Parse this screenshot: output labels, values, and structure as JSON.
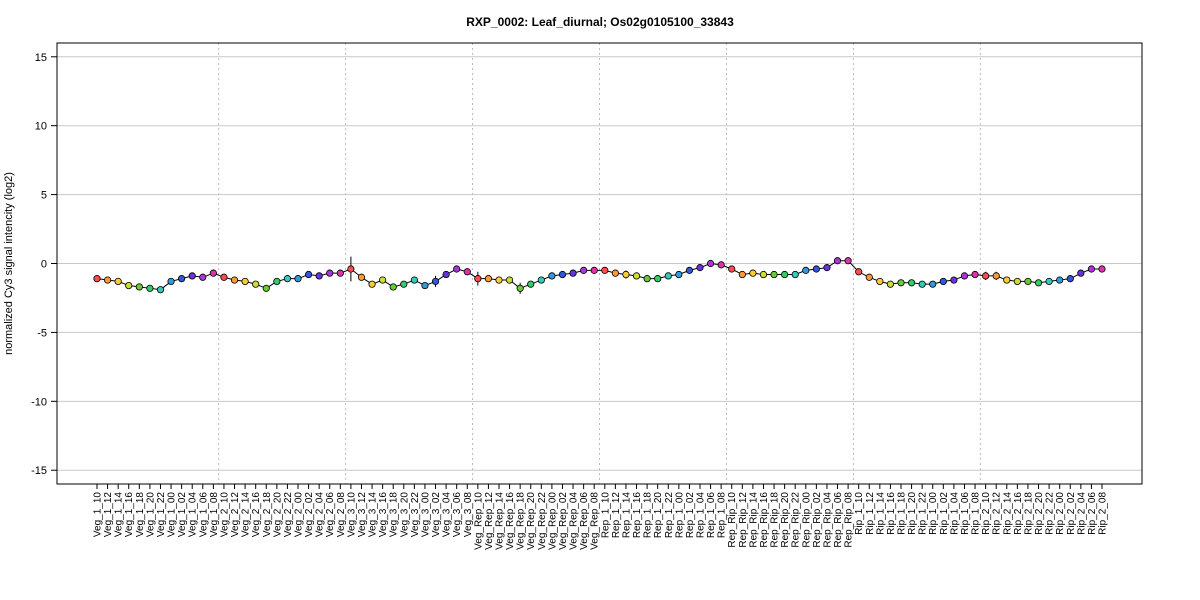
{
  "chart_data": {
    "type": "line",
    "title": "RXP_0002: Leaf_diurnal; Os02g0105100_33843",
    "xlabel": "",
    "ylabel": "normalized Cy3 signal intencity (log2)",
    "ylim": [
      -16,
      16
    ],
    "yticks": [
      -15,
      -10,
      -5,
      0,
      5,
      10,
      15
    ],
    "grid": true,
    "group_separators_after": [
      11,
      23,
      35,
      47,
      59,
      71,
      83
    ],
    "categories": [
      "Veg_1_10",
      "Veg_1_12",
      "Veg_1_14",
      "Veg_1_16",
      "Veg_1_18",
      "Veg_1_20",
      "Veg_1_22",
      "Veg_1_00",
      "Veg_1_02",
      "Veg_1_04",
      "Veg_1_06",
      "Veg_1_08",
      "Veg_2_10",
      "Veg_2_12",
      "Veg_2_14",
      "Veg_2_16",
      "Veg_2_18",
      "Veg_2_20",
      "Veg_2_22",
      "Veg_2_00",
      "Veg_2_02",
      "Veg_2_04",
      "Veg_2_06",
      "Veg_2_08",
      "Veg_3_10",
      "Veg_3_12",
      "Veg_3_14",
      "Veg_3_16",
      "Veg_3_18",
      "Veg_3_20",
      "Veg_3_22",
      "Veg_3_00",
      "Veg_3_02",
      "Veg_3_04",
      "Veg_3_06",
      "Veg_3_08",
      "Veg_Rep_10",
      "Veg_Rep_12",
      "Veg_Rep_14",
      "Veg_Rep_16",
      "Veg_Rep_18",
      "Veg_Rep_20",
      "Veg_Rep_22",
      "Veg_Rep_00",
      "Veg_Rep_02",
      "Veg_Rep_04",
      "Veg_Rep_06",
      "Veg_Rep_08",
      "Rep_1_10",
      "Rep_1_12",
      "Rep_1_14",
      "Rep_1_16",
      "Rep_1_18",
      "Rep_1_20",
      "Rep_1_22",
      "Rep_1_00",
      "Rep_1_02",
      "Rep_1_04",
      "Rep_1_06",
      "Rep_1_08",
      "Rep_Rip_10",
      "Rep_Rip_12",
      "Rep_Rip_14",
      "Rep_Rip_16",
      "Rep_Rip_18",
      "Rep_Rip_20",
      "Rep_Rip_22",
      "Rep_Rip_00",
      "Rep_Rip_02",
      "Rep_Rip_04",
      "Rep_Rip_06",
      "Rep_Rip_08",
      "Rip_1_10",
      "Rip_1_12",
      "Rip_1_14",
      "Rip_1_16",
      "Rip_1_18",
      "Rip_1_20",
      "Rip_1_22",
      "Rip_1_00",
      "Rip_1_02",
      "Rip_1_04",
      "Rip_1_06",
      "Rip_1_08",
      "Rip_2_10",
      "Rip_2_12",
      "Rip_2_14",
      "Rip_2_16",
      "Rip_2_18",
      "Rip_2_20",
      "Rip_2_22",
      "Rip_2_00",
      "Rip_2_02",
      "Rip_2_04",
      "Rip_2_06",
      "Rip_2_08"
    ],
    "values": [
      -1.1,
      -1.2,
      -1.3,
      -1.6,
      -1.7,
      -1.8,
      -1.9,
      -1.3,
      -1.1,
      -0.9,
      -1.0,
      -0.7,
      -1.0,
      -1.2,
      -1.3,
      -1.5,
      -1.8,
      -1.3,
      -1.1,
      -1.1,
      -0.8,
      -0.9,
      -0.7,
      -0.7,
      -0.4,
      -1.0,
      -1.5,
      -1.2,
      -1.7,
      -1.5,
      -1.2,
      -1.6,
      -1.3,
      -0.8,
      -0.4,
      -0.6,
      -1.1,
      -1.1,
      -1.2,
      -1.2,
      -1.8,
      -1.5,
      -1.2,
      -0.9,
      -0.8,
      -0.7,
      -0.5,
      -0.5,
      -0.5,
      -0.7,
      -0.8,
      -0.9,
      -1.1,
      -1.1,
      -0.9,
      -0.8,
      -0.5,
      -0.3,
      -0.0,
      -0.1,
      -0.4,
      -0.8,
      -0.7,
      -0.8,
      -0.8,
      -0.8,
      -0.8,
      -0.5,
      -0.4,
      -0.3,
      0.2,
      0.2,
      -0.6,
      -1.0,
      -1.3,
      -1.5,
      -1.4,
      -1.4,
      -1.5,
      -1.5,
      -1.3,
      -1.2,
      -0.9,
      -0.8,
      -0.9,
      -0.9,
      -1.2,
      -1.3,
      -1.3,
      -1.4,
      -1.3,
      -1.2,
      -1.1,
      -0.7,
      -0.4,
      -0.4
    ],
    "errors": [
      0.1,
      0.1,
      0.1,
      0.2,
      0.2,
      0.1,
      0.2,
      0.1,
      0.1,
      0.1,
      0.1,
      0.1,
      0.1,
      0.1,
      0.1,
      0.1,
      0.1,
      0.1,
      0.1,
      0.1,
      0.2,
      0.1,
      0.1,
      0.1,
      0.9,
      0.1,
      0.1,
      0.1,
      0.2,
      0.2,
      0.1,
      0.1,
      0.4,
      0.1,
      0.1,
      0.1,
      0.5,
      0.1,
      0.1,
      0.1,
      0.4,
      0.1,
      0.2,
      0.2,
      0.1,
      0.1,
      0.1,
      0.1,
      0.1,
      0.1,
      0.3,
      0.1,
      0.1,
      0.1,
      0.1,
      0.1,
      0.1,
      0.1,
      0.1,
      0.1,
      0.1,
      0.1,
      0.1,
      0.1,
      0.1,
      0.1,
      0.1,
      0.1,
      0.1,
      0.1,
      0.1,
      0.1,
      0.1,
      0.1,
      0.1,
      0.1,
      0.1,
      0.1,
      0.1,
      0.1,
      0.1,
      0.1,
      0.1,
      0.1,
      0.3,
      0.3,
      0.1,
      0.1,
      0.1,
      0.1,
      0.1,
      0.1,
      0.1,
      0.1,
      0.1,
      0.1
    ],
    "point_colors": [
      "#ff4d4d",
      "#ff9933",
      "#ffcc33",
      "#ccdd33",
      "#66cc33",
      "#33cc66",
      "#33ccbb",
      "#3399dd",
      "#3355dd",
      "#6633dd",
      "#aa33dd",
      "#dd33aa",
      "#ff4d4d",
      "#ff9933",
      "#ffcc33",
      "#ccdd33",
      "#66cc33",
      "#33cc66",
      "#33ccbb",
      "#3399dd",
      "#3355dd",
      "#6633dd",
      "#aa33dd",
      "#dd33aa",
      "#ff4d4d",
      "#ff9933",
      "#ffcc33",
      "#ccdd33",
      "#66cc33",
      "#33cc66",
      "#33ccbb",
      "#3399dd",
      "#3355dd",
      "#6633dd",
      "#aa33dd",
      "#dd33aa",
      "#ff4d4d",
      "#ff9933",
      "#ffcc33",
      "#ccdd33",
      "#66cc33",
      "#33cc66",
      "#33ccbb",
      "#3399dd",
      "#3355dd",
      "#6633dd",
      "#aa33dd",
      "#dd33aa",
      "#ff4d4d",
      "#ff9933",
      "#ffcc33",
      "#ccdd33",
      "#66cc33",
      "#33cc66",
      "#33ccbb",
      "#3399dd",
      "#3355dd",
      "#6633dd",
      "#aa33dd",
      "#dd33aa",
      "#ff4d4d",
      "#ff9933",
      "#ffcc33",
      "#ccdd33",
      "#66cc33",
      "#33cc66",
      "#33ccbb",
      "#3399dd",
      "#3355dd",
      "#6633dd",
      "#aa33dd",
      "#dd33aa",
      "#ff4d4d",
      "#ff9933",
      "#ffcc33",
      "#ccdd33",
      "#66cc33",
      "#33cc66",
      "#33ccbb",
      "#3399dd",
      "#3355dd",
      "#6633dd",
      "#aa33dd",
      "#dd33aa",
      "#ff4d4d",
      "#ff9933",
      "#ffcc33",
      "#ccdd33",
      "#66cc33",
      "#33cc66",
      "#33ccbb",
      "#3399dd",
      "#3355dd",
      "#6633dd",
      "#aa33dd",
      "#dd33aa"
    ]
  },
  "colors": {
    "line": "#000000",
    "grid": "#c8c8c8",
    "separator": "#bbbbbb",
    "background": "#ffffff"
  }
}
